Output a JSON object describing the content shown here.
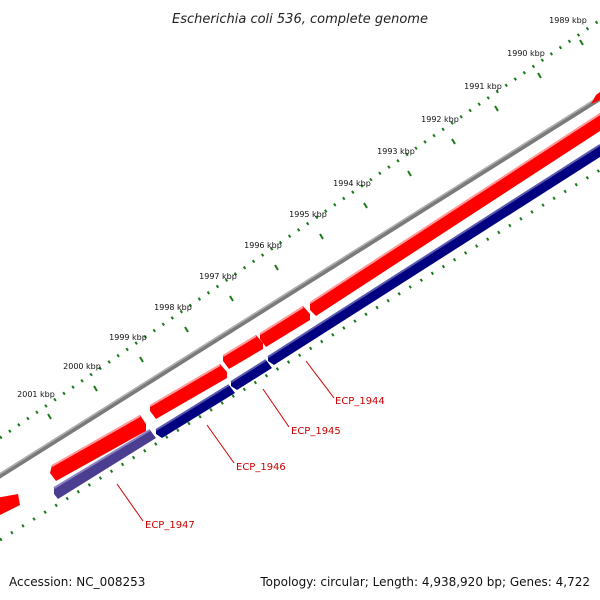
{
  "title": "Escherichia coli 536, complete genome",
  "footer": {
    "accession": "Accession: NC_008253",
    "summary": "Topology: circular; Length: 4,938,920 bp; Genes: 4,722"
  },
  "tick_labels": [
    "1989 kbp",
    "1990 kbp",
    "1991 kbp",
    "1992 kbp",
    "1993 kbp",
    "1994 kbp",
    "1995 kbp",
    "1996 kbp",
    "1997 kbp",
    "1998 kbp",
    "1999 kbp",
    "2000 kbp",
    "2001 kbp"
  ],
  "genes": [
    {
      "label": "ECP_1944",
      "strand": "minus"
    },
    {
      "label": "ECP_1945",
      "strand": "minus"
    },
    {
      "label": "ECP_1946",
      "strand": "minus"
    },
    {
      "label": "ECP_1947",
      "strand": "minus"
    }
  ],
  "colors": {
    "backbone": "#7a7a7a",
    "plus_strand": "#ff0000",
    "minus_strand": "#000080",
    "minus_strand_light": "#4b3d8f",
    "ticks": "#1a7a1a",
    "gene_label": "#cc0000"
  }
}
